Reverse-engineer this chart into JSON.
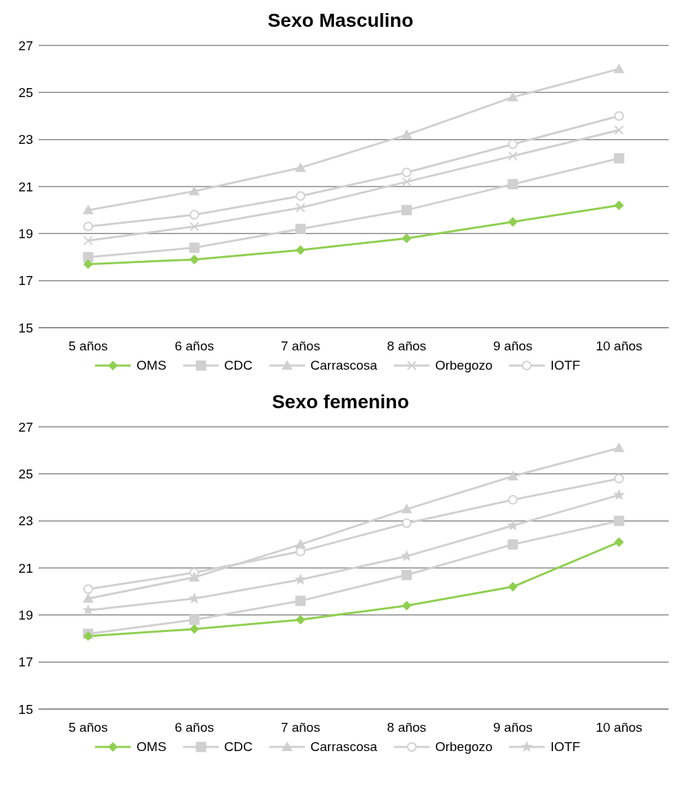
{
  "chart_data": [
    {
      "type": "line",
      "title": "Sexo Masculino",
      "categories": [
        "5 años",
        "6 años",
        "7 años",
        "8 años",
        "9 años",
        "10 años"
      ],
      "series": [
        {
          "name": "OMS",
          "color": "#8fcf50",
          "marker": "diamond",
          "values": [
            17.7,
            17.9,
            18.3,
            18.8,
            19.5,
            20.2
          ]
        },
        {
          "name": "CDC",
          "color": "#d0d0d0",
          "marker": "square",
          "values": [
            18.0,
            18.4,
            19.2,
            20.0,
            21.1,
            22.2
          ]
        },
        {
          "name": "Carrascosa",
          "color": "#d0d0d0",
          "marker": "triangle",
          "values": [
            20.0,
            20.8,
            21.8,
            23.2,
            24.8,
            26.0
          ]
        },
        {
          "name": "Orbegozo",
          "color": "#d0d0d0",
          "marker": "cross",
          "values": [
            18.7,
            19.3,
            20.1,
            21.2,
            22.3,
            23.4
          ]
        },
        {
          "name": "IOTF",
          "color": "#d0d0d0",
          "marker": "circle",
          "values": [
            19.3,
            19.8,
            20.6,
            21.6,
            22.8,
            24.0
          ]
        }
      ],
      "ylim": [
        15,
        27
      ],
      "yticks": [
        15,
        17,
        19,
        21,
        23,
        25,
        27
      ],
      "grid": "y",
      "legend": "bottom"
    },
    {
      "type": "line",
      "title": "Sexo femenino",
      "categories": [
        "5 años",
        "6 años",
        "7 años",
        "8 años",
        "9 años",
        "10 años"
      ],
      "series": [
        {
          "name": "OMS",
          "color": "#8fcf50",
          "marker": "diamond",
          "values": [
            18.1,
            18.4,
            18.8,
            19.4,
            20.2,
            22.1
          ]
        },
        {
          "name": "CDC",
          "color": "#d0d0d0",
          "marker": "square",
          "values": [
            18.2,
            18.8,
            19.6,
            20.7,
            22.0,
            23.0
          ]
        },
        {
          "name": "Carrascosa",
          "color": "#d0d0d0",
          "marker": "triangle",
          "values": [
            19.7,
            20.6,
            22.0,
            23.5,
            24.9,
            26.1
          ]
        },
        {
          "name": "Orbegozo",
          "color": "#d0d0d0",
          "marker": "circle",
          "values": [
            20.1,
            20.8,
            21.7,
            22.9,
            23.9,
            24.8
          ]
        },
        {
          "name": "IOTF",
          "color": "#d0d0d0",
          "marker": "star",
          "values": [
            19.2,
            19.7,
            20.5,
            21.5,
            22.8,
            24.1
          ]
        }
      ],
      "ylim": [
        15,
        27
      ],
      "yticks": [
        15,
        17,
        19,
        21,
        23,
        25,
        27
      ],
      "grid": "y",
      "legend": "bottom"
    }
  ]
}
